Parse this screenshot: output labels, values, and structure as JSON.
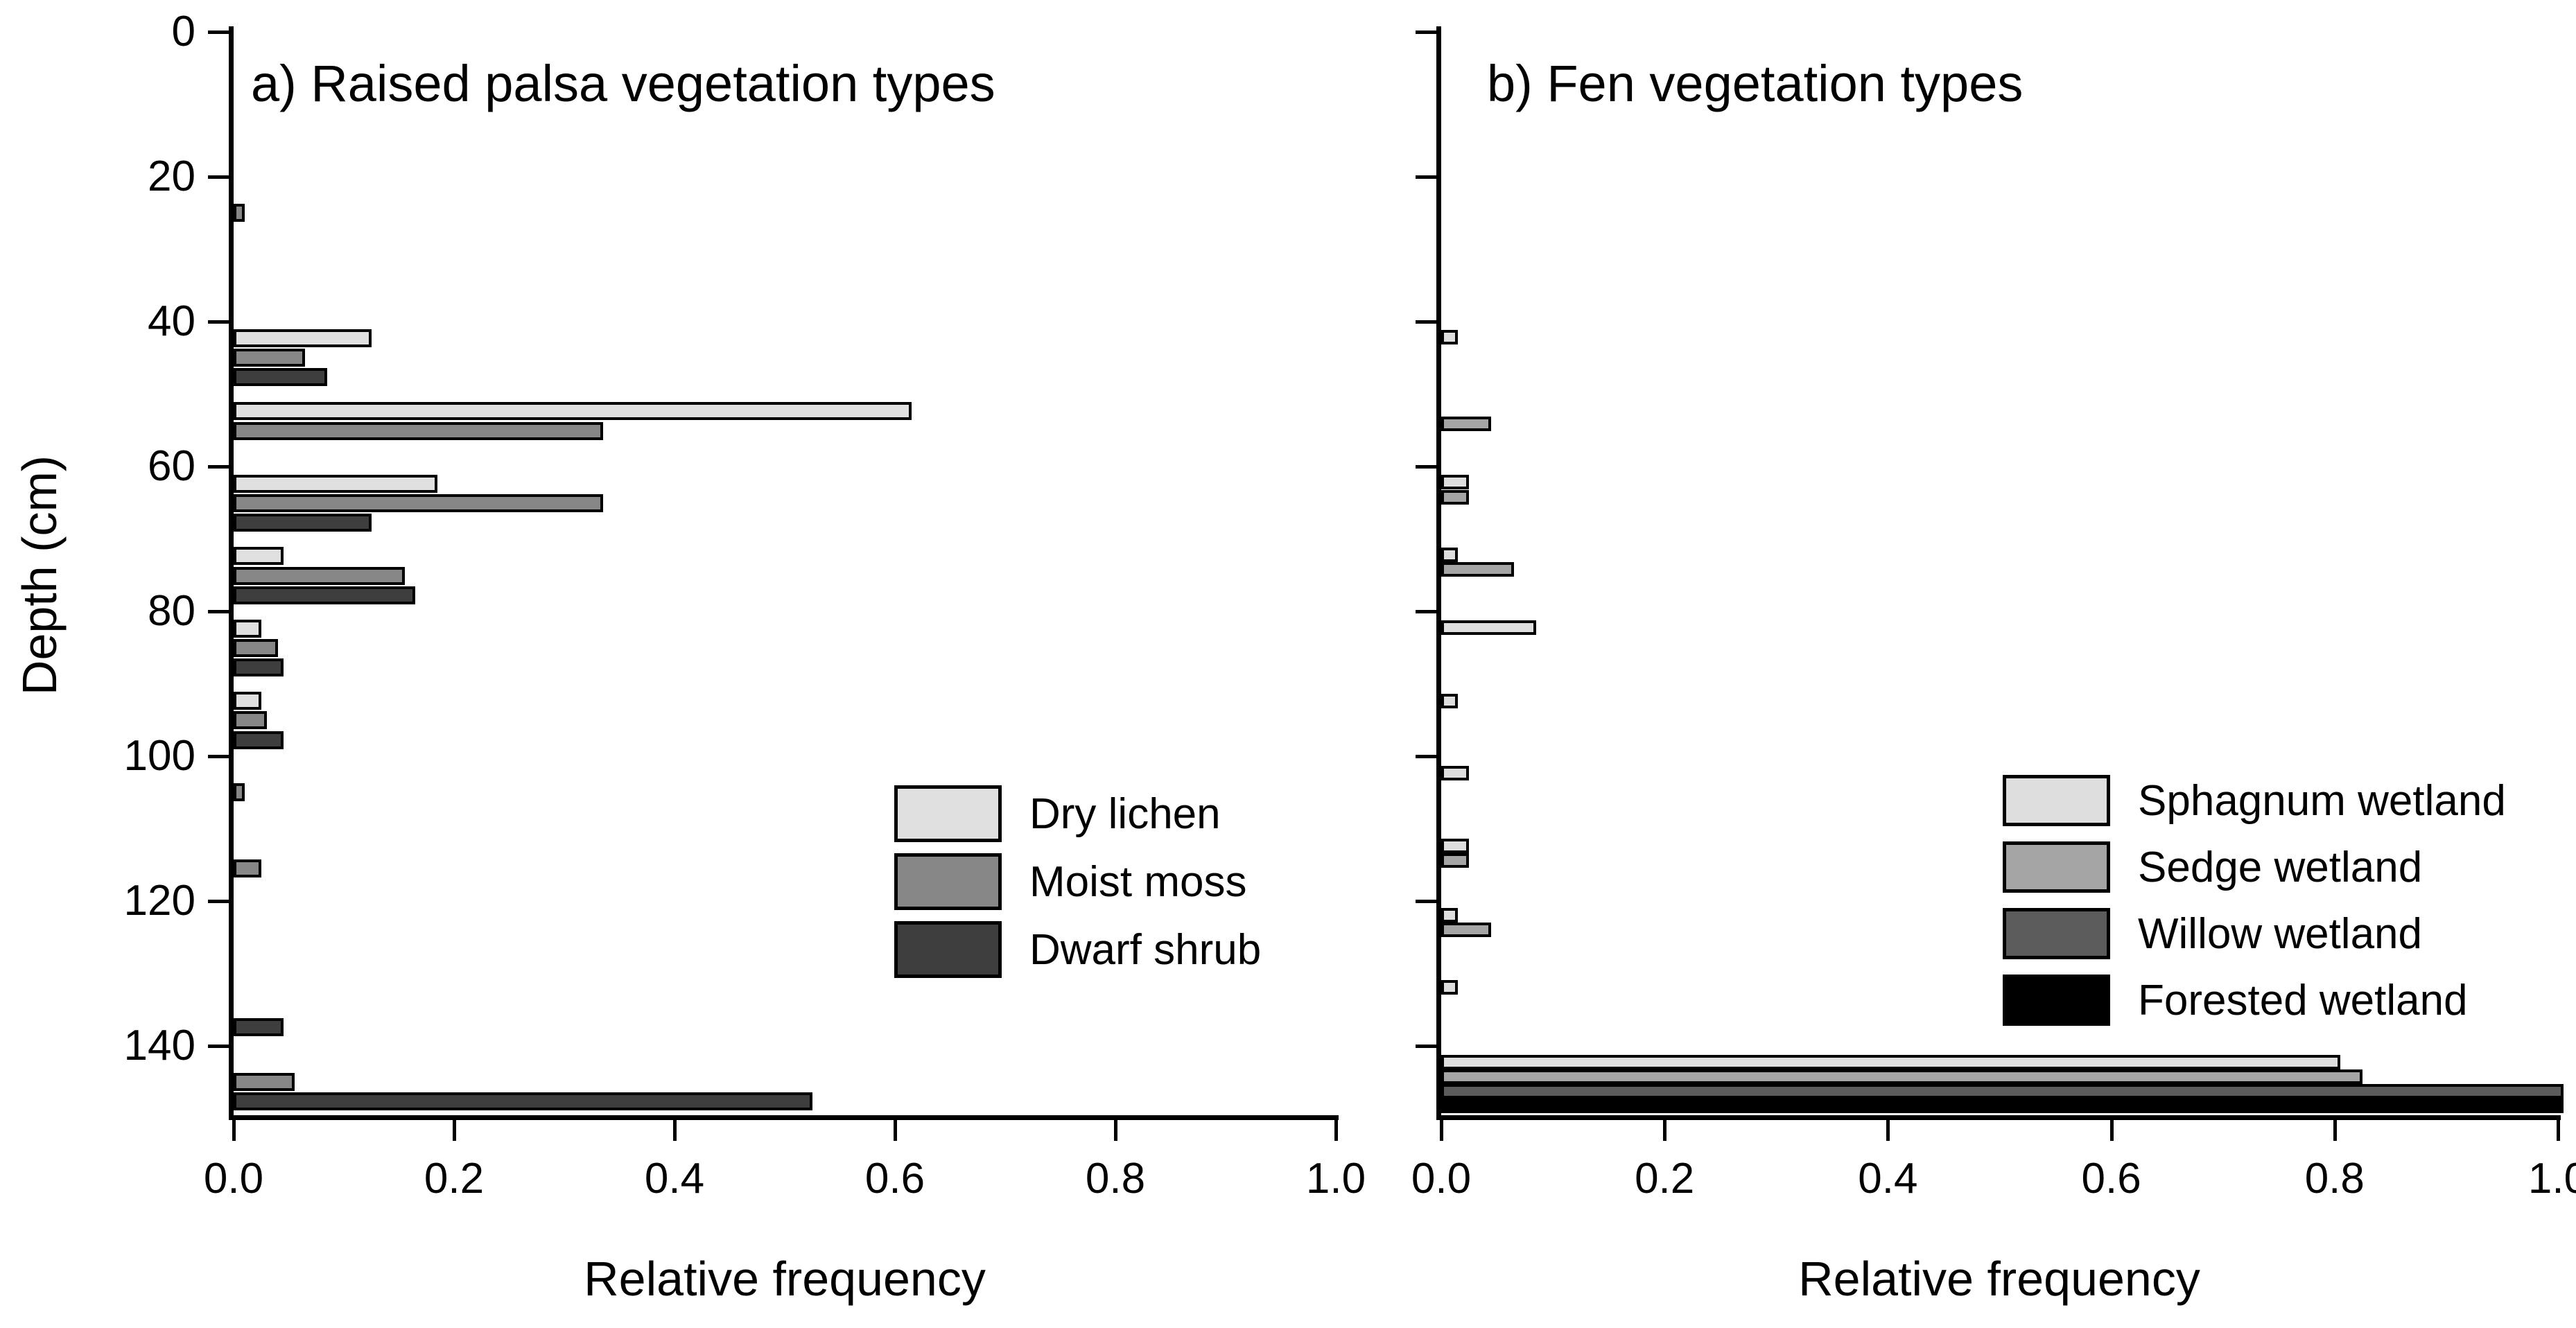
{
  "figure": {
    "background": "#ffffff",
    "axis_color": "#000000",
    "text_color": "#000000"
  },
  "chart_data": [
    {
      "type": "bar",
      "orientation": "horizontal",
      "panel": "a",
      "title": "a) Raised palsa vegetation types",
      "xlabel": "Relative frequency",
      "ylabel": "Depth (cm)",
      "xlim": [
        0.0,
        1.0
      ],
      "ylim": [
        0,
        150
      ],
      "y_axis_inverted": true,
      "grid": false,
      "x_tick_values": [
        0.0,
        0.2,
        0.4,
        0.6,
        0.8,
        1.0
      ],
      "x_tick_labels": [
        "0.0",
        "0.2",
        "0.4",
        "0.6",
        "0.8",
        "1.0"
      ],
      "y_tick_values": [
        0,
        20,
        40,
        60,
        80,
        100,
        120,
        140
      ],
      "y_tick_labels": [
        "0",
        "20",
        "40",
        "60",
        "80",
        "100",
        "120",
        "140"
      ],
      "legend_position": "center-right",
      "series": [
        {
          "name": "Dry lichen",
          "color": "#e0e0e0",
          "points": [
            {
              "depth_cm": 42.3,
              "value": 0.12
            },
            {
              "depth_cm": 52.4,
              "value": 0.61
            },
            {
              "depth_cm": 62.4,
              "value": 0.18
            },
            {
              "depth_cm": 72.4,
              "value": 0.04
            },
            {
              "depth_cm": 82.4,
              "value": 0.02
            },
            {
              "depth_cm": 92.4,
              "value": 0.02
            }
          ]
        },
        {
          "name": "Moist moss",
          "color": "#878787",
          "points": [
            {
              "depth_cm": 25.0,
              "value": 0.005
            },
            {
              "depth_cm": 45.0,
              "value": 0.06
            },
            {
              "depth_cm": 55.1,
              "value": 0.33
            },
            {
              "depth_cm": 65.1,
              "value": 0.33
            },
            {
              "depth_cm": 75.1,
              "value": 0.15
            },
            {
              "depth_cm": 85.1,
              "value": 0.035
            },
            {
              "depth_cm": 95.1,
              "value": 0.025
            },
            {
              "depth_cm": 105.0,
              "value": 0.005
            },
            {
              "depth_cm": 115.5,
              "value": 0.02
            },
            {
              "depth_cm": 145.0,
              "value": 0.05
            }
          ]
        },
        {
          "name": "Dwarf shrub",
          "color": "#3e3e3e",
          "points": [
            {
              "depth_cm": 47.7,
              "value": 0.08
            },
            {
              "depth_cm": 67.8,
              "value": 0.12
            },
            {
              "depth_cm": 77.8,
              "value": 0.16
            },
            {
              "depth_cm": 87.8,
              "value": 0.04
            },
            {
              "depth_cm": 97.8,
              "value": 0.04
            },
            {
              "depth_cm": 137.5,
              "value": 0.04
            },
            {
              "depth_cm": 147.7,
              "value": 0.52
            }
          ]
        }
      ]
    },
    {
      "type": "bar",
      "orientation": "horizontal",
      "panel": "b",
      "title": "b) Fen vegetation types",
      "xlabel": "Relative frequency",
      "ylabel": "",
      "xlim": [
        0.0,
        1.0
      ],
      "ylim": [
        0,
        150
      ],
      "y_axis_inverted": true,
      "grid": false,
      "x_tick_values": [
        0.0,
        0.2,
        0.4,
        0.6,
        0.8,
        1.0
      ],
      "x_tick_labels": [
        "0.0",
        "0.2",
        "0.4",
        "0.6",
        "0.8",
        "1.0"
      ],
      "y_tick_values": [
        0,
        20,
        40,
        60,
        80,
        100,
        120,
        140
      ],
      "y_tick_labels": [],
      "legend_position": "center-right",
      "series": [
        {
          "name": "Sphagnum wetland",
          "color": "#dedede",
          "points": [
            {
              "depth_cm": 42.2,
              "value": 0.01
            },
            {
              "depth_cm": 62.2,
              "value": 0.02
            },
            {
              "depth_cm": 72.2,
              "value": 0.01
            },
            {
              "depth_cm": 82.3,
              "value": 0.08
            },
            {
              "depth_cm": 92.4,
              "value": 0.01
            },
            {
              "depth_cm": 102.4,
              "value": 0.02
            },
            {
              "depth_cm": 112.4,
              "value": 0.02
            },
            {
              "depth_cm": 122.0,
              "value": 0.01
            },
            {
              "depth_cm": 132.0,
              "value": 0.01
            },
            {
              "depth_cm": 142.3,
              "value": 0.8
            }
          ]
        },
        {
          "name": "Sedge wetland",
          "color": "#a5a5a5",
          "points": [
            {
              "depth_cm": 54.1,
              "value": 0.04
            },
            {
              "depth_cm": 64.3,
              "value": 0.02
            },
            {
              "depth_cm": 74.2,
              "value": 0.06
            },
            {
              "depth_cm": 114.4,
              "value": 0.02
            },
            {
              "depth_cm": 124.0,
              "value": 0.04
            },
            {
              "depth_cm": 144.3,
              "value": 0.82
            }
          ]
        },
        {
          "name": "Willow wetland",
          "color": "#5c5c5c",
          "points": [
            {
              "depth_cm": 146.3,
              "value": 1.0
            }
          ]
        },
        {
          "name": "Forested wetland",
          "color": "#000000",
          "points": [
            {
              "depth_cm": 148.3,
              "value": 1.0
            }
          ]
        }
      ]
    }
  ]
}
